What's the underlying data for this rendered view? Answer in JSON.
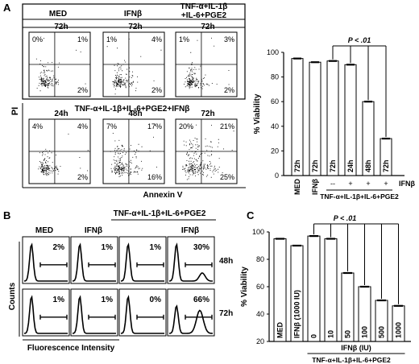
{
  "panel_a": {
    "letter": "A",
    "flow": {
      "col_headers": [
        "MED",
        "IFNβ",
        "TNF-α+IL-1β",
        "+IL-6+PGE2"
      ],
      "row2_title": "TNF-α+IL-1β+IL-6+PGE2+IFNβ",
      "y_axis": "PI",
      "x_axis": "Annexin V",
      "top_row": [
        {
          "time": "72h",
          "q": [
            "0%",
            "1%",
            "",
            "2%"
          ],
          "density": 0.55
        },
        {
          "time": "72h",
          "q": [
            "1%",
            "4%",
            "",
            "2%"
          ],
          "density": 0.6
        },
        {
          "time": "72h",
          "q": [
            "1%",
            "3%",
            "",
            "2%"
          ],
          "density": 0.6
        }
      ],
      "bottom_row": [
        {
          "time": "24h",
          "q": [
            "4%",
            "4%",
            "",
            "2%"
          ],
          "density": 0.55
        },
        {
          "time": "48h",
          "q": [
            "7%",
            "17%",
            "",
            "16%"
          ],
          "density": 0.75
        },
        {
          "time": "72h",
          "q": [
            "20%",
            "21%",
            "",
            "25%"
          ],
          "density": 0.9
        }
      ]
    }
  },
  "panel_b": {
    "letter": "B",
    "group_label": "TNF-α+IL-1β+IL-6+PGE2",
    "col_headers": [
      "MED",
      "IFNβ",
      "",
      "IFNβ"
    ],
    "row_times": [
      "48h",
      "72h"
    ],
    "rows": [
      [
        "2%",
        "1%",
        "1%",
        "30%"
      ],
      [
        "1%",
        "1%",
        "0%",
        "66%"
      ]
    ],
    "y_axis": "Counts",
    "x_axis": "Fluorescence Intensity"
  },
  "panel_c": {
    "letter": "C"
  },
  "chart_data": [
    {
      "type": "bar",
      "panel": "A",
      "ylabel": "% Viability",
      "ylim": [
        0,
        100
      ],
      "yticks": [
        0,
        20,
        40,
        60,
        80,
        100
      ],
      "bar_labels": [
        "72h",
        "72h",
        "72h",
        "24h",
        "48h",
        "72h"
      ],
      "values": [
        95,
        92,
        93,
        90,
        60,
        30
      ],
      "categories": [
        "MED",
        "IFNβ",
        "",
        "",
        "",
        ""
      ],
      "ifn_row": [
        "--",
        "+",
        "+",
        "+"
      ],
      "ifn_label": "IFNβ",
      "group_label": "TNF-α+IL-1β+IL-6+PGE2",
      "significance": "P < .01"
    },
    {
      "type": "bar",
      "panel": "C",
      "ylabel": "% Viability",
      "ylim": [
        20,
        100
      ],
      "yticks": [
        20,
        40,
        60,
        80,
        100
      ],
      "categories": [
        "MED",
        "IFNβ (1000 IU)",
        "0",
        "10",
        "50",
        "100",
        "500",
        "1000"
      ],
      "values": [
        95,
        90,
        97,
        95,
        70,
        60,
        50,
        46
      ],
      "ifn_axis_label": "IFNβ (IU)",
      "group_label": "TNF-α+IL-1β+IL-6+PGE2",
      "significance": "P < .01"
    }
  ]
}
